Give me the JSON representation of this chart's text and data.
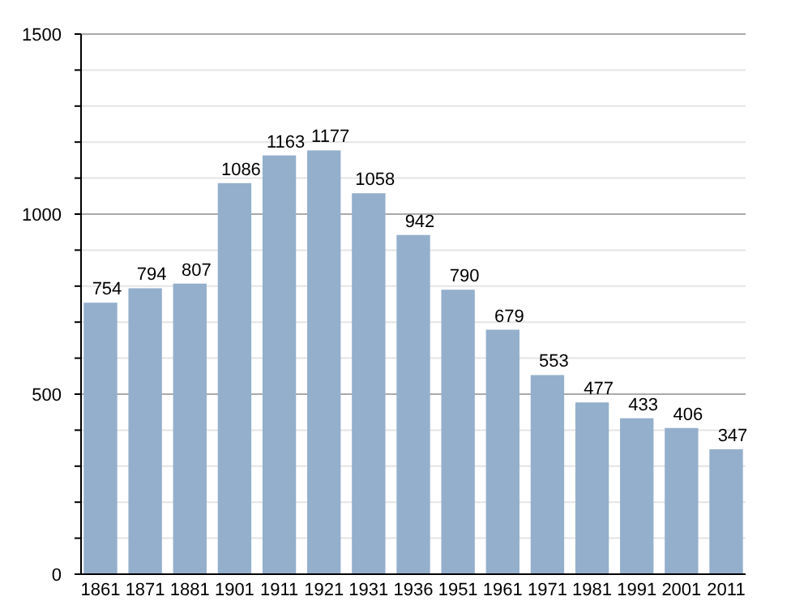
{
  "chart_data": {
    "type": "bar",
    "categories": [
      "1861",
      "1871",
      "1881",
      "1901",
      "1911",
      "1921",
      "1931",
      "1936",
      "1951",
      "1961",
      "1971",
      "1981",
      "1991",
      "2001",
      "2011"
    ],
    "values": [
      754,
      794,
      807,
      1086,
      1163,
      1177,
      1058,
      942,
      790,
      679,
      553,
      477,
      433,
      406,
      347
    ],
    "color": "#94afcc",
    "ylim": [
      0,
      1500
    ],
    "yticks": [
      0,
      {
        "value": 100,
        "label": null
      },
      {
        "value": 200,
        "label": null
      },
      {
        "value": 300,
        "label": null
      },
      {
        "value": 400,
        "label": null
      },
      500,
      {
        "value": 600,
        "label": null
      },
      {
        "value": 700,
        "label": null
      },
      {
        "value": 800,
        "label": null
      },
      {
        "value": 900,
        "label": null
      },
      1000,
      {
        "value": 1100,
        "label": null
      },
      {
        "value": 1200,
        "label": null
      },
      {
        "value": 1300,
        "label": null
      },
      {
        "value": 1400,
        "label": null
      },
      1500
    ],
    "grid": true,
    "data_labels": true
  }
}
